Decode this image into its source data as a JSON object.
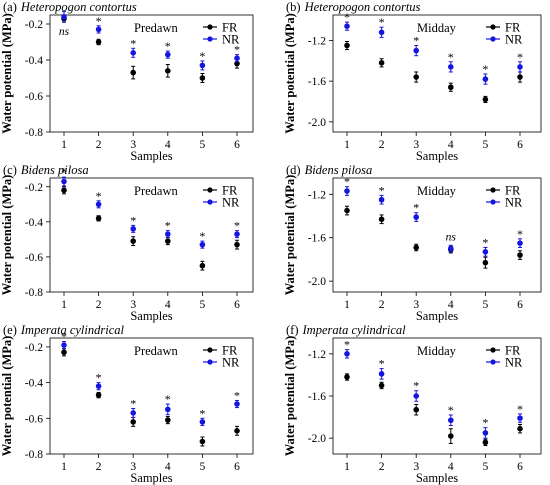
{
  "series_colors": {
    "FR": "#000000",
    "NR": "#1515e0"
  },
  "chart_data": [
    {
      "type": "scatter",
      "panel_label": "(a)",
      "species": "Heteropogon contortus",
      "time": "Predawn",
      "xlabel": "Samples",
      "ylabel": "Water potential (MPa)",
      "categories": [
        "1",
        "2",
        "3",
        "4",
        "5",
        "6"
      ],
      "ylim": [
        -0.8,
        -0.15
      ],
      "yticks": [
        "-0.2",
        "-0.4",
        "-0.6",
        "-0.8"
      ],
      "ytick_values": [
        -0.2,
        -0.4,
        -0.6,
        -0.8
      ],
      "legend": [
        "FR",
        "NR"
      ],
      "series": [
        {
          "name": "FR",
          "values": [
            -0.17,
            -0.3,
            -0.47,
            -0.46,
            -0.5,
            -0.42
          ],
          "errors": [
            0.02,
            0.015,
            0.035,
            0.035,
            0.025,
            0.025
          ]
        },
        {
          "name": "NR",
          "values": [
            -0.16,
            -0.23,
            -0.36,
            -0.37,
            -0.43,
            -0.39
          ],
          "errors": [
            0.03,
            0.02,
            0.025,
            0.02,
            0.025,
            0.02
          ]
        }
      ],
      "annotations": [
        "ns",
        "*",
        "*",
        "*",
        "*",
        "*"
      ]
    },
    {
      "type": "scatter",
      "panel_label": "(b)",
      "species": "Heteropogon contortus",
      "time": "Midday",
      "xlabel": "Samples",
      "ylabel": "Water potential (MPa)",
      "categories": [
        "1",
        "2",
        "3",
        "4",
        "5",
        "6"
      ],
      "ylim": [
        -2.1,
        -0.95
      ],
      "yticks": [
        "-1.2",
        "-1.6",
        "-2.0"
      ],
      "ytick_values": [
        -1.2,
        -1.6,
        -2.0
      ],
      "legend": [
        "FR",
        "NR"
      ],
      "series": [
        {
          "name": "FR",
          "values": [
            -1.25,
            -1.42,
            -1.56,
            -1.66,
            -1.78,
            -1.56
          ],
          "errors": [
            0.04,
            0.04,
            0.05,
            0.04,
            0.03,
            0.05
          ]
        },
        {
          "name": "NR",
          "values": [
            -1.06,
            -1.12,
            -1.3,
            -1.46,
            -1.58,
            -1.46
          ],
          "errors": [
            0.04,
            0.05,
            0.05,
            0.05,
            0.05,
            0.05
          ]
        }
      ],
      "annotations": [
        "*",
        "*",
        "*",
        "*",
        "*",
        "*"
      ]
    },
    {
      "type": "scatter",
      "panel_label": "(c)",
      "species": "Bidens pilosa",
      "time": "Predawn",
      "xlabel": "Samples",
      "ylabel": "Water potential (MPa)",
      "categories": [
        "1",
        "2",
        "3",
        "4",
        "5",
        "6"
      ],
      "ylim": [
        -0.8,
        -0.15
      ],
      "yticks": [
        "-0.2",
        "-0.4",
        "-0.6",
        "-0.8"
      ],
      "ytick_values": [
        -0.2,
        -0.4,
        -0.6,
        -0.8
      ],
      "legend": [
        "FR",
        "NR"
      ],
      "series": [
        {
          "name": "FR",
          "values": [
            -0.22,
            -0.38,
            -0.51,
            -0.51,
            -0.65,
            -0.53
          ],
          "errors": [
            0.02,
            0.015,
            0.025,
            0.02,
            0.025,
            0.025
          ]
        },
        {
          "name": "NR",
          "values": [
            -0.17,
            -0.3,
            -0.44,
            -0.47,
            -0.53,
            -0.47
          ],
          "errors": [
            0.025,
            0.02,
            0.02,
            0.02,
            0.02,
            0.02
          ]
        }
      ],
      "annotations": [
        "*",
        "*",
        "*",
        "*",
        "*",
        "*"
      ]
    },
    {
      "type": "scatter",
      "panel_label": "(d)",
      "species": "Bidens pilosa",
      "time": "Midday",
      "xlabel": "Samples",
      "ylabel": "Water potential (MPa)",
      "categories": [
        "1",
        "2",
        "3",
        "4",
        "5",
        "6"
      ],
      "ylim": [
        -2.1,
        -1.05
      ],
      "yticks": [
        "-1.2",
        "-1.6",
        "-2.0"
      ],
      "ytick_values": [
        -1.2,
        -1.6,
        -2.0
      ],
      "legend": [
        "FR",
        "NR"
      ],
      "series": [
        {
          "name": "FR",
          "values": [
            -1.35,
            -1.43,
            -1.69,
            -1.71,
            -1.83,
            -1.76
          ],
          "errors": [
            0.04,
            0.04,
            0.03,
            0.03,
            0.05,
            0.04
          ]
        },
        {
          "name": "NR",
          "values": [
            -1.17,
            -1.25,
            -1.41,
            -1.7,
            -1.73,
            -1.65
          ],
          "errors": [
            0.04,
            0.04,
            0.04,
            0.03,
            0.04,
            0.04
          ]
        }
      ],
      "annotations": [
        "*",
        "*",
        "*",
        "ns",
        "*",
        "*"
      ]
    },
    {
      "type": "scatter",
      "panel_label": "(e)",
      "species": "Imperata cylindrical",
      "time": "Predawn",
      "xlabel": "Samples",
      "ylabel": "Water potential (MPa)",
      "categories": [
        "1",
        "2",
        "3",
        "4",
        "5",
        "6"
      ],
      "ylim": [
        -0.8,
        -0.15
      ],
      "yticks": [
        "-0.2",
        "-0.4",
        "-0.6",
        "-0.8"
      ],
      "ytick_values": [
        -0.2,
        -0.4,
        -0.6,
        -0.8
      ],
      "legend": [
        "FR",
        "NR"
      ],
      "series": [
        {
          "name": "FR",
          "values": [
            -0.23,
            -0.47,
            -0.62,
            -0.61,
            -0.73,
            -0.67
          ],
          "errors": [
            0.02,
            0.015,
            0.025,
            0.02,
            0.025,
            0.025
          ]
        },
        {
          "name": "NR",
          "values": [
            -0.19,
            -0.42,
            -0.57,
            -0.55,
            -0.62,
            -0.52
          ],
          "errors": [
            0.02,
            0.02,
            0.025,
            0.03,
            0.02,
            0.02
          ]
        }
      ],
      "annotations": [
        "*",
        "*",
        "*",
        "*",
        "*",
        "*"
      ]
    },
    {
      "type": "scatter",
      "panel_label": "(f)",
      "species": "Imperata cylindrical",
      "time": "Midday",
      "xlabel": "Samples",
      "ylabel": "Water potential (MPa)",
      "categories": [
        "1",
        "2",
        "3",
        "4",
        "5",
        "6"
      ],
      "ylim": [
        -2.15,
        -1.05
      ],
      "yticks": [
        "-1.2",
        "-1.6",
        "-2.0"
      ],
      "ytick_values": [
        -1.2,
        -1.6,
        -2.0
      ],
      "legend": [
        "FR",
        "NR"
      ],
      "series": [
        {
          "name": "FR",
          "values": [
            -1.42,
            -1.5,
            -1.73,
            -1.98,
            -2.04,
            -1.91
          ],
          "errors": [
            0.03,
            0.03,
            0.05,
            0.07,
            0.03,
            0.04
          ]
        },
        {
          "name": "NR",
          "values": [
            -1.2,
            -1.39,
            -1.6,
            -1.83,
            -1.95,
            -1.81
          ],
          "errors": [
            0.04,
            0.05,
            0.05,
            0.05,
            0.05,
            0.04
          ]
        }
      ],
      "annotations": [
        "*",
        "*",
        "*",
        "*",
        "*",
        "*"
      ]
    }
  ]
}
